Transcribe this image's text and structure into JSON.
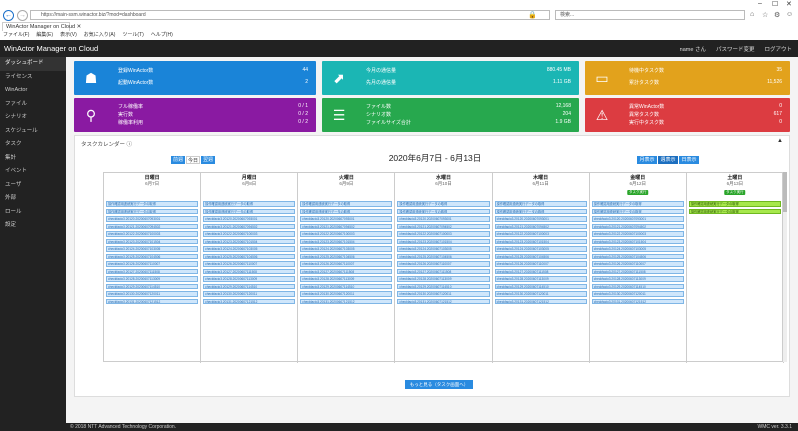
{
  "browser": {
    "url": "https://main-ssm.winactor.biz/?mod=dashboard",
    "search_placeholder": "検索...",
    "tab_title": "WinActor Manager on Cloud",
    "menu": [
      "ファイル(F)",
      "編集(E)",
      "表示(V)",
      "お気に入り(A)",
      "ツール(T)",
      "ヘルプ(H)"
    ]
  },
  "header": {
    "title": "WinActor Manager on Cloud",
    "user": "name さん",
    "password_change": "パスワード変更",
    "logout": "ログアウト"
  },
  "sidebar": {
    "items": [
      "ダッシュボード",
      "ライセンス",
      "WinActor",
      "ファイル",
      "シナリオ",
      "スケジュール",
      "タスク",
      "集計",
      "イベント",
      "ユーザ",
      "外部",
      "ロール",
      "設定"
    ]
  },
  "cards": [
    {
      "icon": "robot-icon",
      "glyph": "☗",
      "color": "#1a84d8",
      "rows": [
        {
          "label": "登録WinActor数",
          "value": "44"
        },
        {
          "label": "起動WinActor数",
          "value": "2"
        }
      ]
    },
    {
      "icon": "chart-icon",
      "glyph": "⬈",
      "color": "#1bb6b4",
      "rows": [
        {
          "label": "今月の通信量",
          "value": "880.45 MB"
        },
        {
          "label": "先月の通信量",
          "value": "1.11 GB"
        }
      ]
    },
    {
      "icon": "inbox-icon",
      "glyph": "▭",
      "color": "#e2a21c",
      "rows": [
        {
          "label": "待機中タスク数",
          "value": "35"
        },
        {
          "label": "累計タスク数",
          "value": "11,526"
        }
      ]
    },
    {
      "icon": "search-icon",
      "glyph": "⚲",
      "color": "#8a1aa2",
      "rows": [
        {
          "label": "フル稼働率",
          "value": "0 / 1"
        },
        {
          "label": "実行数",
          "value": "0 / 2"
        },
        {
          "label": "稼働率利用",
          "value": "0 / 2"
        }
      ]
    },
    {
      "icon": "document-icon",
      "glyph": "☰",
      "color": "#27a84e",
      "rows": [
        {
          "label": "ファイル数",
          "value": "12,168"
        },
        {
          "label": "シナリオ数",
          "value": "204"
        },
        {
          "label": "ファイルサイズ合計",
          "value": "1.9 GB"
        }
      ]
    },
    {
      "icon": "alert-icon",
      "glyph": "⚠",
      "color": "#dc3c41",
      "rows": [
        {
          "label": "異常WinActor数",
          "value": "0"
        },
        {
          "label": "異常タスク数",
          "value": "617"
        },
        {
          "label": "実行中タスク数",
          "value": "0"
        }
      ]
    }
  ],
  "calendar": {
    "heading": "タスクカレンダー ⓘ",
    "prev": "前週",
    "today": "今日",
    "next": "翌週",
    "title": "2020年6月7日 - 6月13日",
    "view_month": "月表示",
    "view_week": "週表示",
    "view_day": "日表示",
    "more": "もっと見る（タスク画面へ）",
    "days": [
      {
        "name": "日曜日",
        "date": "6月7日",
        "badge": ""
      },
      {
        "name": "月曜日",
        "date": "6月8日",
        "badge": ""
      },
      {
        "name": "火曜日",
        "date": "6月9日",
        "badge": ""
      },
      {
        "name": "水曜日",
        "date": "6月10日",
        "badge": ""
      },
      {
        "name": "木曜日",
        "date": "6月11日",
        "badge": ""
      },
      {
        "name": "金曜日",
        "date": "6月12日",
        "badge": "タスク実行"
      },
      {
        "name": "土曜日",
        "date": "6月13日",
        "badge": "タスク実行"
      }
    ],
    "event_a": "操作確認用連続実行データの取得",
    "event_b": "操作確認用連続実行データの取得",
    "event_list": [
      "checkfacio3.20120.20200607093001",
      "checkfacio3.20121.20200607094502",
      "checkfacio3.20122.20200607100003",
      "checkfacio3.20123.20200607101504",
      "checkfacio3.20124.20200607103005",
      "checkfacio3.20125.20200607104506",
      "checkfacio3.20126.20200607110007",
      "checkfacio3.20127.20200607111508",
      "checkfacio3.20128.20200607113009",
      "checkfacio3.20129.20200607114510",
      "checkfacio3.20130.20200607120011",
      "checkfacio3.20131.20200607121512"
    ]
  },
  "footer": {
    "copyright": "© 2018 NTT Advanced Technology Corporation.",
    "version": "WMC ver. 3.3.1"
  }
}
